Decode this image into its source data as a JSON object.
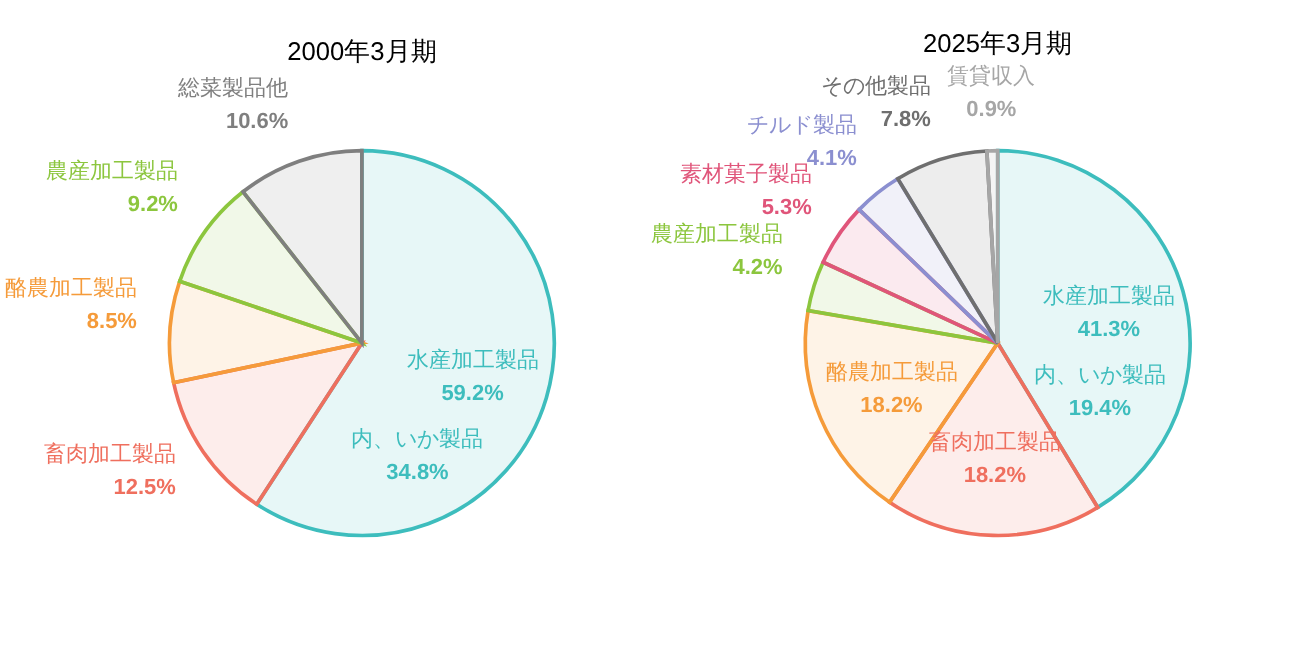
{
  "chart_data": [
    {
      "type": "pie",
      "title": "2000年3月期",
      "categories": [
        "水産加工製品",
        "畜肉加工製品",
        "酪農加工製品",
        "農産加工製品",
        "総菜製品他"
      ],
      "values": [
        59.2,
        12.5,
        8.5,
        9.2,
        10.6
      ],
      "value_labels": [
        "59.2%",
        "12.5%",
        "8.5%",
        "9.2%",
        "10.6%"
      ],
      "colors": [
        "#3dbdbd",
        "#ef6f5e",
        "#f59b3a",
        "#8cc63e",
        "#7f7f7f"
      ],
      "annotations": [
        "内、いか製品 34.8%"
      ]
    },
    {
      "type": "pie",
      "title": "2025年3月期",
      "categories": [
        "水産加工製品",
        "畜肉加工製品",
        "酪農加工製品",
        "農産加工製品",
        "素材菓子製品",
        "チルド製品",
        "その他製品",
        "賃貸収入"
      ],
      "values": [
        41.3,
        18.2,
        18.2,
        4.2,
        5.3,
        4.1,
        7.8,
        0.9
      ],
      "value_labels": [
        "41.3%",
        "18.2%",
        "18.2%",
        "4.2%",
        "5.3%",
        "4.1%",
        "7.8%",
        "0.9%"
      ],
      "colors": [
        "#3dbdbd",
        "#ef6f5e",
        "#f59b3a",
        "#8cc63e",
        "#e0557a",
        "#8b8fd0",
        "#6f6f6f",
        "#a6a6a6"
      ],
      "annotations": [
        "内、いか製品 19.4%"
      ]
    }
  ]
}
